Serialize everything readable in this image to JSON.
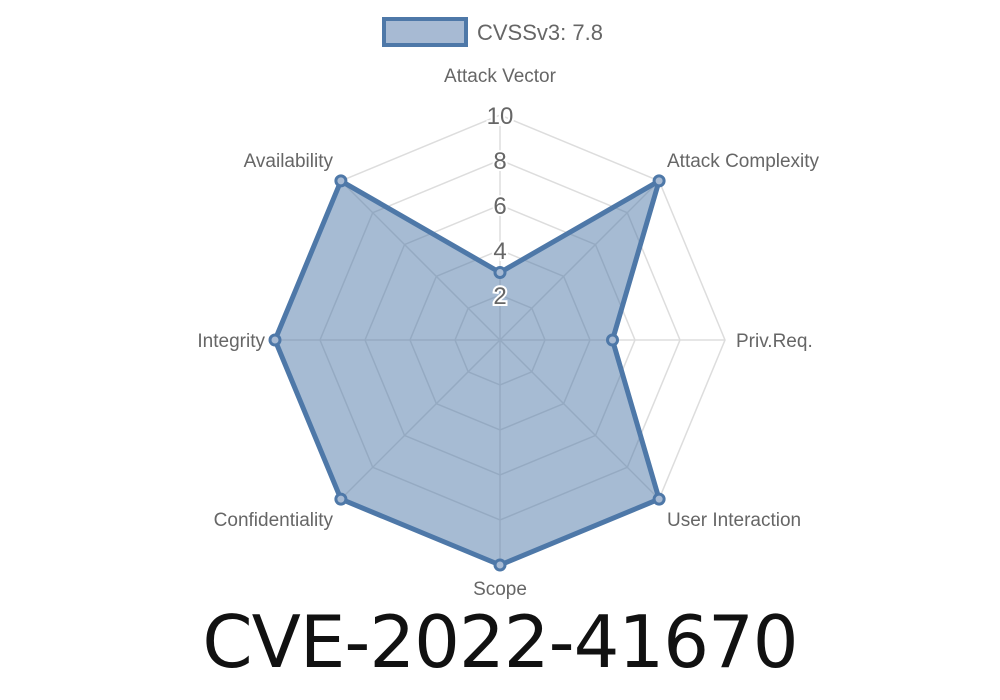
{
  "chart_data": {
    "type": "radar",
    "legend": {
      "label": "CVSSv3: 7.8",
      "placement": "top"
    },
    "categories": [
      "Attack Vector",
      "Attack Complexity",
      "Priv.Req.",
      "User Interaction",
      "Scope",
      "Confidentiality",
      "Integrity",
      "Availability"
    ],
    "series": [
      {
        "name": "CVSSv3: 7.8",
        "values": [
          3,
          10,
          5,
          10,
          10,
          10,
          10,
          10
        ]
      }
    ],
    "rlim": [
      0,
      10
    ],
    "ticks": [
      "2",
      "4",
      "6",
      "8",
      "10"
    ],
    "grid": true,
    "colors": {
      "stroke": "#4e78a8",
      "fill": "rgba(78,120,168,0.5)",
      "grid": "#dddddd",
      "text": "#666666"
    }
  },
  "title": "CVE-2022-41670"
}
